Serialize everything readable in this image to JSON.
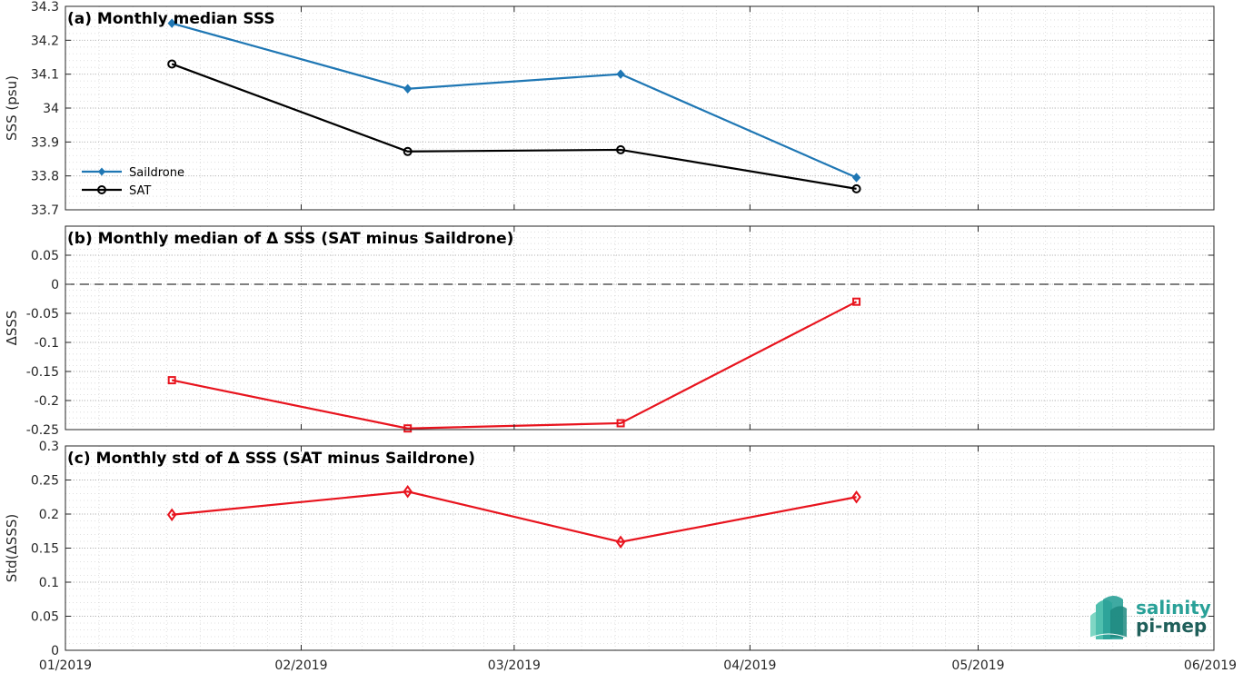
{
  "x_tick_labels": [
    "01/2019",
    "02/2019",
    "03/2019",
    "04/2019",
    "05/2019",
    "06/2019"
  ],
  "logo": {
    "line1": "salinity",
    "line2": "pi-mep"
  },
  "colors": {
    "saildrone": "#1f77b4",
    "sat": "#000000",
    "delta": "#e8141e",
    "zero_line": "#000000",
    "logo": "#2aa198"
  },
  "chart_data": [
    {
      "type": "line",
      "title": "(a) Monthly median SSS",
      "ylabel": "SSS (psu)",
      "xlabel": "",
      "x": [
        "2019-01-15",
        "2019-02-15",
        "2019-03-15",
        "2019-04-15"
      ],
      "series": [
        {
          "name": "Saildrone",
          "values": [
            34.25,
            34.057,
            34.1,
            33.795
          ],
          "marker": "filled-diamond"
        },
        {
          "name": "SAT",
          "values": [
            34.13,
            33.872,
            33.877,
            33.762
          ],
          "marker": "open-circle"
        }
      ],
      "xlim": [
        "2019-01-01",
        "2019-06-01"
      ],
      "ylim": [
        33.7,
        34.3
      ],
      "yticks": [
        33.7,
        33.8,
        33.9,
        34,
        34.1,
        34.2,
        34.3
      ],
      "ytick_labels": [
        "33.7",
        "33.8",
        "33.9",
        "34",
        "34.1",
        "34.2",
        "34.3"
      ],
      "legend": "bottom-left",
      "grid": true
    },
    {
      "type": "line",
      "title": "(b) Monthly median of Δ SSS (SAT minus Saildrone)",
      "ylabel": "ΔSSS",
      "xlabel": "",
      "x": [
        "2019-01-15",
        "2019-02-15",
        "2019-03-15",
        "2019-04-15"
      ],
      "series": [
        {
          "values": [
            -0.165,
            -0.248,
            -0.239,
            -0.03
          ],
          "marker": "open-square"
        }
      ],
      "reference_line": 0,
      "xlim": [
        "2019-01-01",
        "2019-06-01"
      ],
      "ylim": [
        -0.25,
        0.1
      ],
      "yticks": [
        -0.25,
        -0.2,
        -0.15,
        -0.1,
        -0.05,
        0,
        0.05
      ],
      "ytick_labels": [
        "-0.25",
        "-0.2",
        "-0.15",
        "-0.1",
        "-0.05",
        "0",
        "0.05"
      ],
      "grid": true
    },
    {
      "type": "line",
      "title": "(c) Monthly std of Δ SSS (SAT minus Saildrone)",
      "ylabel": "Std(ΔSSS)",
      "xlabel": "",
      "x": [
        "2019-01-15",
        "2019-02-15",
        "2019-03-15",
        "2019-04-15"
      ],
      "series": [
        {
          "values": [
            0.199,
            0.233,
            0.159,
            0.225
          ],
          "marker": "open-diamond"
        }
      ],
      "xlim": [
        "2019-01-01",
        "2019-06-01"
      ],
      "ylim": [
        0,
        0.3
      ],
      "yticks": [
        0,
        0.05,
        0.1,
        0.15,
        0.2,
        0.25,
        0.3
      ],
      "ytick_labels": [
        "0",
        "0.05",
        "0.1",
        "0.15",
        "0.2",
        "0.25",
        "0.3"
      ],
      "grid": true
    }
  ]
}
